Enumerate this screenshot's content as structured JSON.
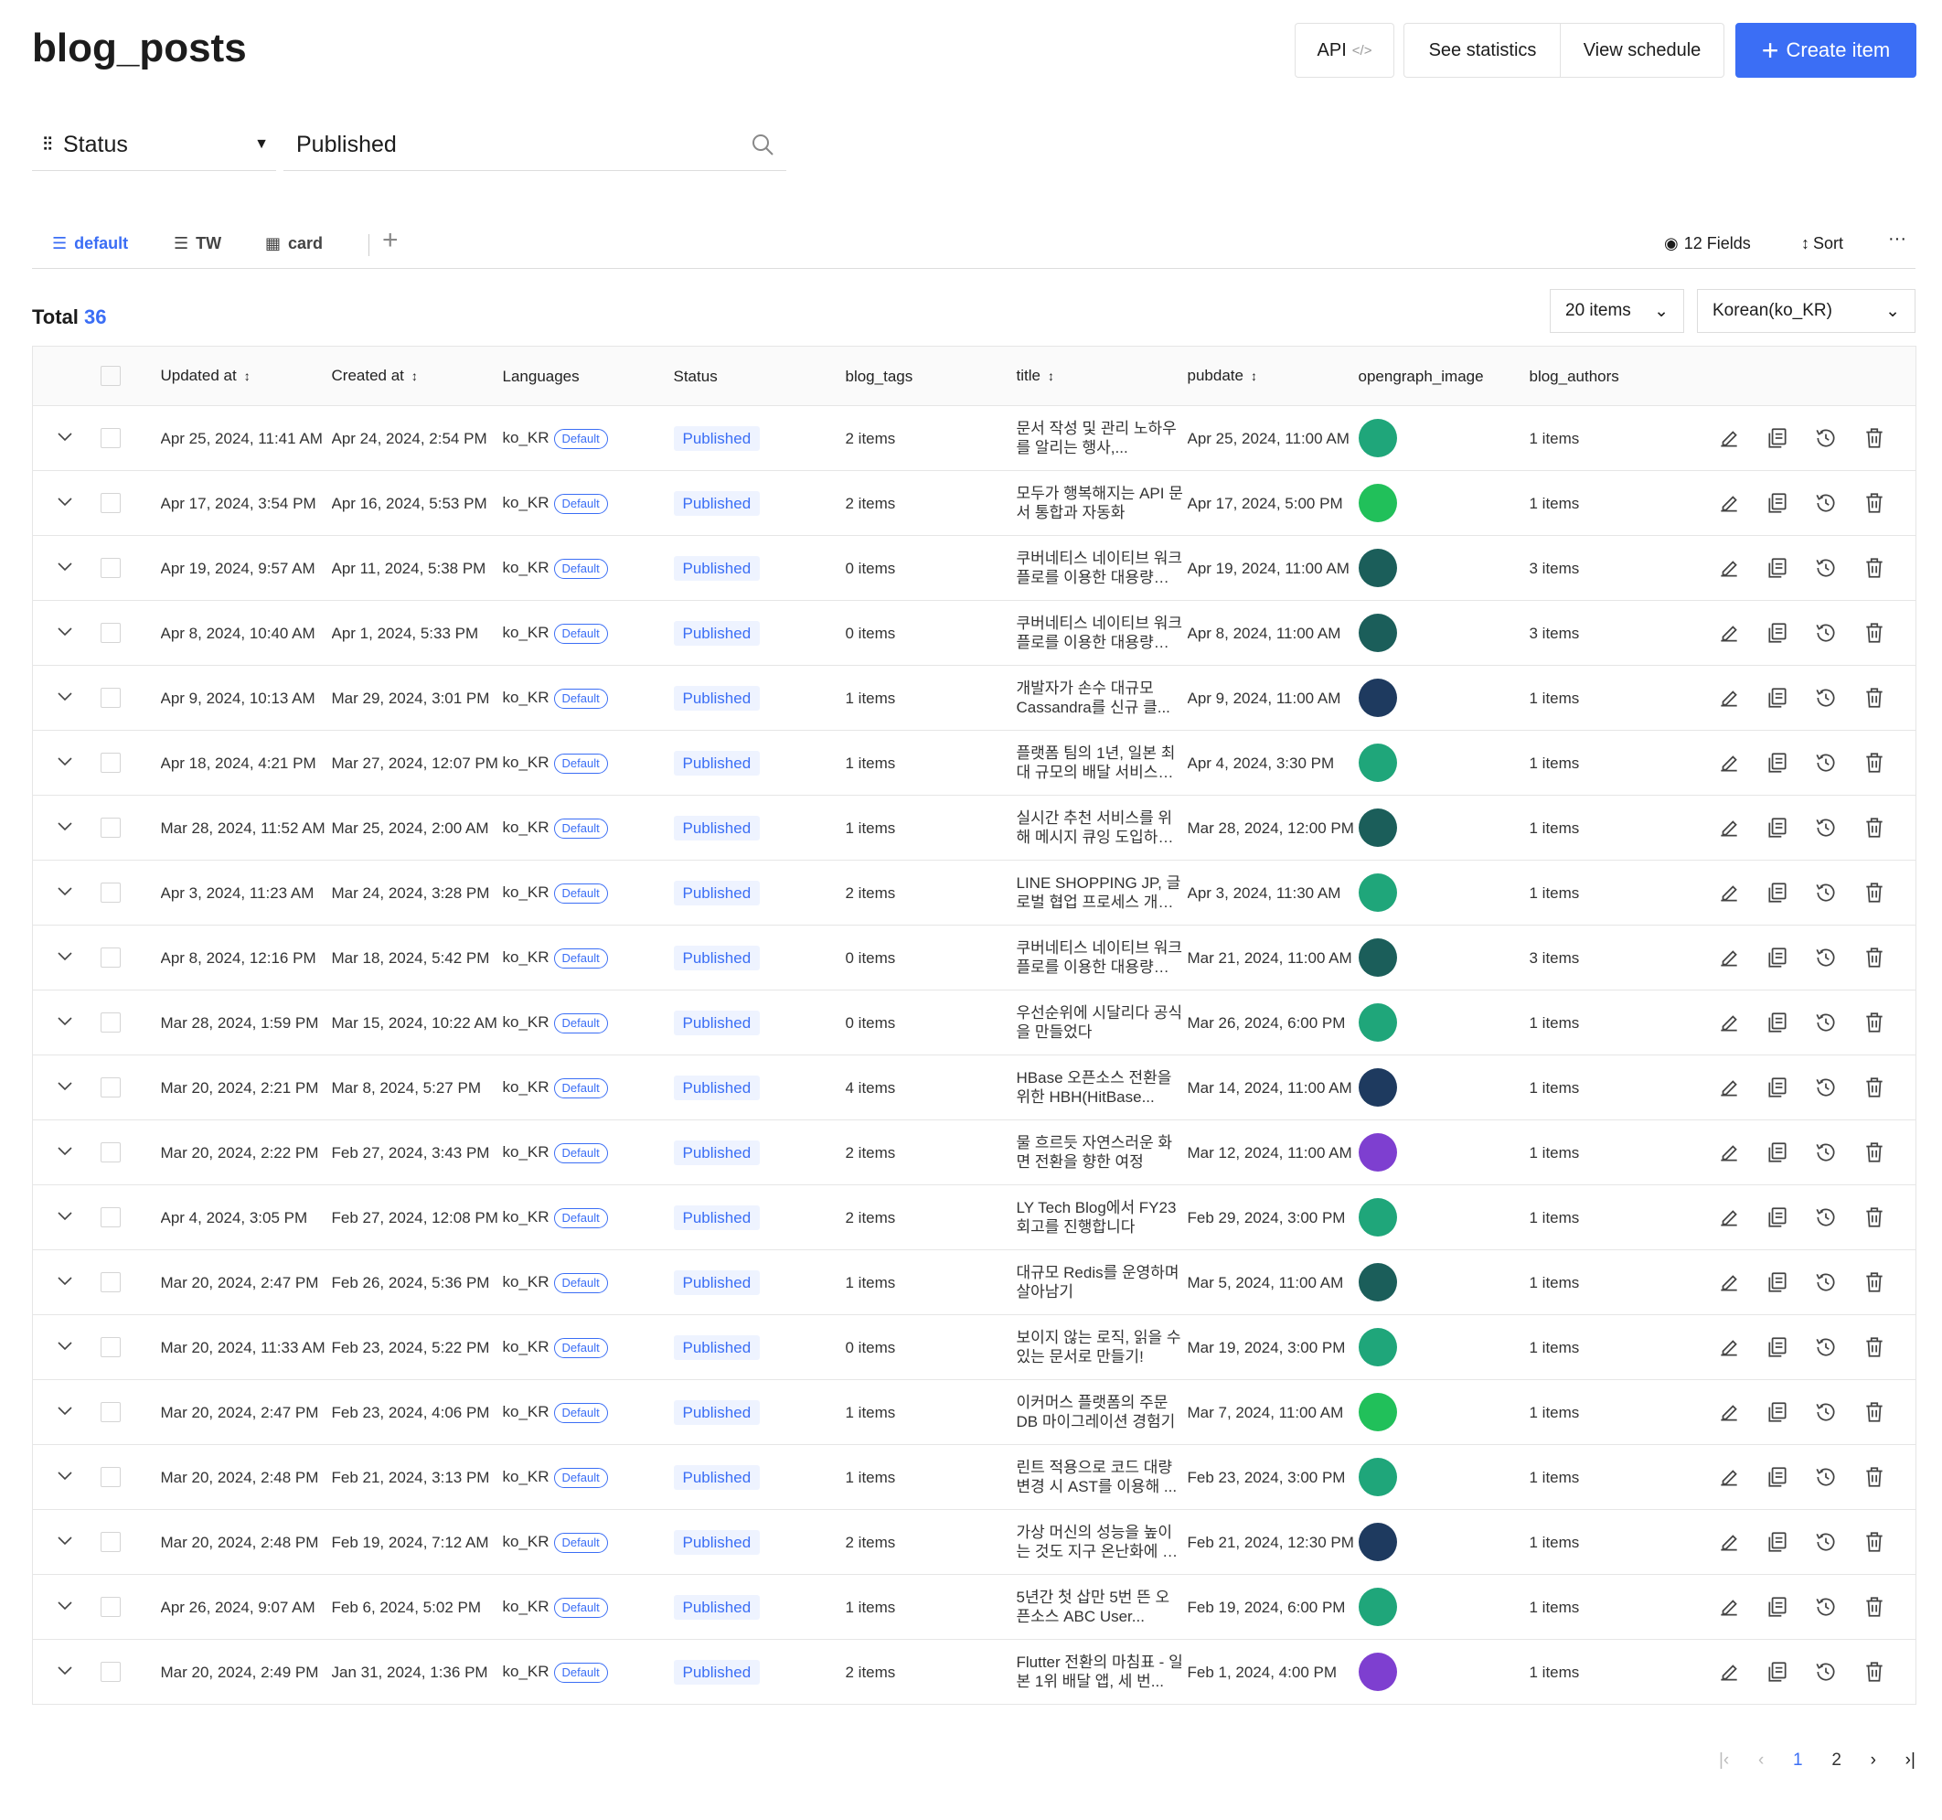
{
  "header": {
    "title": "blog_posts",
    "buttons": {
      "api": "API",
      "statistics": "See statistics",
      "schedule": "View schedule",
      "create": "Create item"
    }
  },
  "filter": {
    "field": "Status",
    "value": "Published"
  },
  "views": {
    "tabs": [
      "default",
      "TW",
      "card"
    ],
    "fields": "12 Fields",
    "sort": "Sort"
  },
  "summary": {
    "label": "Total",
    "count": 36,
    "page_size": "20 items",
    "locale": "Korean(ko_KR)"
  },
  "table": {
    "columns": [
      {
        "label": "Updated at",
        "sortable": true
      },
      {
        "label": "Created at",
        "sortable": true
      },
      {
        "label": "Languages",
        "sortable": false
      },
      {
        "label": "Status",
        "sortable": false
      },
      {
        "label": "blog_tags",
        "sortable": false
      },
      {
        "label": "title",
        "sortable": true
      },
      {
        "label": "pubdate",
        "sortable": true
      },
      {
        "label": "opengraph_image",
        "sortable": false
      },
      {
        "label": "blog_authors",
        "sortable": false
      }
    ],
    "rows": [
      {
        "updated_at": "Apr 25, 2024, 11:41 AM",
        "created_at": "Apr 24, 2024, 2:54 PM",
        "language": "ko_KR",
        "language_badge": "Default",
        "status": "Published",
        "blog_tags": "2 items",
        "title": "문서 작성 및 관리 노하우를 알리는 행사,...",
        "pubdate": "Apr 25, 2024, 11:00 AM",
        "opengraph_image": "#1fa67a",
        "blog_authors": "1 items"
      },
      {
        "updated_at": "Apr 17, 2024, 3:54 PM",
        "created_at": "Apr 16, 2024, 5:53 PM",
        "language": "ko_KR",
        "language_badge": "Default",
        "status": "Published",
        "blog_tags": "2 items",
        "title": "모두가 행복해지는 API 문서 통합과 자동화",
        "pubdate": "Apr 17, 2024, 5:00 PM",
        "opengraph_image": "#21c05a",
        "blog_authors": "1 items"
      },
      {
        "updated_at": "Apr 19, 2024, 9:57 AM",
        "created_at": "Apr 11, 2024, 5:38 PM",
        "language": "ko_KR",
        "language_badge": "Default",
        "status": "Published",
        "blog_tags": "0 items",
        "title": "쿠버네티스 네이티브 워크플로를 이용한 대용량 스...",
        "pubdate": "Apr 19, 2024, 11:00 AM",
        "opengraph_image": "#1b5e5a",
        "blog_authors": "3 items"
      },
      {
        "updated_at": "Apr 8, 2024, 10:40 AM",
        "created_at": "Apr 1, 2024, 5:33 PM",
        "language": "ko_KR",
        "language_badge": "Default",
        "status": "Published",
        "blog_tags": "0 items",
        "title": "쿠버네티스 네이티브 워크플로를 이용한 대용량 스...",
        "pubdate": "Apr 8, 2024, 11:00 AM",
        "opengraph_image": "#1b5e5a",
        "blog_authors": "3 items"
      },
      {
        "updated_at": "Apr 9, 2024, 10:13 AM",
        "created_at": "Mar 29, 2024, 3:01 PM",
        "language": "ko_KR",
        "language_badge": "Default",
        "status": "Published",
        "blog_tags": "1 items",
        "title": "개발자가 손수 대규모 Cassandra를 신규 클...",
        "pubdate": "Apr 9, 2024, 11:00 AM",
        "opengraph_image": "#1e3a5f",
        "blog_authors": "1 items"
      },
      {
        "updated_at": "Apr 18, 2024, 4:21 PM",
        "created_at": "Mar 27, 2024, 12:07 PM",
        "language": "ko_KR",
        "language_badge": "Default",
        "status": "Published",
        "blog_tags": "1 items",
        "title": "플랫폼 팀의 1년, 일본 최대 규모의 배달 서비스에 안...",
        "pubdate": "Apr 4, 2024, 3:30 PM",
        "opengraph_image": "#1fa67a",
        "blog_authors": "1 items"
      },
      {
        "updated_at": "Mar 28, 2024, 11:52 AM",
        "created_at": "Mar 25, 2024, 2:00 AM",
        "language": "ko_KR",
        "language_badge": "Default",
        "status": "Published",
        "blog_tags": "1 items",
        "title": "실시간 추천 서비스를 위해 메시지 큐잉 도입하기...",
        "pubdate": "Mar 28, 2024, 12:00 PM",
        "opengraph_image": "#1b5e5a",
        "blog_authors": "1 items"
      },
      {
        "updated_at": "Apr 3, 2024, 11:23 AM",
        "created_at": "Mar 24, 2024, 3:28 PM",
        "language": "ko_KR",
        "language_badge": "Default",
        "status": "Published",
        "blog_tags": "2 items",
        "title": "LINE SHOPPING JP, 글로벌 협업 프로세스 개선...",
        "pubdate": "Apr 3, 2024, 11:30 AM",
        "opengraph_image": "#1fa67a",
        "blog_authors": "1 items"
      },
      {
        "updated_at": "Apr 8, 2024, 12:16 PM",
        "created_at": "Mar 18, 2024, 5:42 PM",
        "language": "ko_KR",
        "language_badge": "Default",
        "status": "Published",
        "blog_tags": "0 items",
        "title": "쿠버네티스 네이티브 워크플로를 이용한 대용량 스...",
        "pubdate": "Mar 21, 2024, 11:00 AM",
        "opengraph_image": "#1b5e5a",
        "blog_authors": "3 items"
      },
      {
        "updated_at": "Mar 28, 2024, 1:59 PM",
        "created_at": "Mar 15, 2024, 10:22 AM",
        "language": "ko_KR",
        "language_badge": "Default",
        "status": "Published",
        "blog_tags": "0 items",
        "title": "우선순위에 시달리다 공식을 만들었다",
        "pubdate": "Mar 26, 2024, 6:00 PM",
        "opengraph_image": "#1fa67a",
        "blog_authors": "1 items"
      },
      {
        "updated_at": "Mar 20, 2024, 2:21 PM",
        "created_at": "Mar 8, 2024, 5:27 PM",
        "language": "ko_KR",
        "language_badge": "Default",
        "status": "Published",
        "blog_tags": "4 items",
        "title": "HBase 오픈소스 전환을 위한 HBH(HitBase...",
        "pubdate": "Mar 14, 2024, 11:00 AM",
        "opengraph_image": "#1e3a5f",
        "blog_authors": "1 items"
      },
      {
        "updated_at": "Mar 20, 2024, 2:22 PM",
        "created_at": "Feb 27, 2024, 3:43 PM",
        "language": "ko_KR",
        "language_badge": "Default",
        "status": "Published",
        "blog_tags": "2 items",
        "title": "물 흐르듯 자연스러운 화면 전환을 향한 여정",
        "pubdate": "Mar 12, 2024, 11:00 AM",
        "opengraph_image": "#7e3fd0",
        "blog_authors": "1 items"
      },
      {
        "updated_at": "Apr 4, 2024, 3:05 PM",
        "created_at": "Feb 27, 2024, 12:08 PM",
        "language": "ko_KR",
        "language_badge": "Default",
        "status": "Published",
        "blog_tags": "2 items",
        "title": "LY Tech Blog에서 FY23 회고를 진행합니다",
        "pubdate": "Feb 29, 2024, 3:00 PM",
        "opengraph_image": "#1fa67a",
        "blog_authors": "1 items"
      },
      {
        "updated_at": "Mar 20, 2024, 2:47 PM",
        "created_at": "Feb 26, 2024, 5:36 PM",
        "language": "ko_KR",
        "language_badge": "Default",
        "status": "Published",
        "blog_tags": "1 items",
        "title": "대규모 Redis를 운영하며 살아남기",
        "pubdate": "Mar 5, 2024, 11:00 AM",
        "opengraph_image": "#1b5e5a",
        "blog_authors": "1 items"
      },
      {
        "updated_at": "Mar 20, 2024, 11:33 AM",
        "created_at": "Feb 23, 2024, 5:22 PM",
        "language": "ko_KR",
        "language_badge": "Default",
        "status": "Published",
        "blog_tags": "0 items",
        "title": "보이지 않는 로직, 읽을 수 있는 문서로 만들기!",
        "pubdate": "Mar 19, 2024, 3:00 PM",
        "opengraph_image": "#1fa67a",
        "blog_authors": "1 items"
      },
      {
        "updated_at": "Mar 20, 2024, 2:47 PM",
        "created_at": "Feb 23, 2024, 4:06 PM",
        "language": "ko_KR",
        "language_badge": "Default",
        "status": "Published",
        "blog_tags": "1 items",
        "title": "이커머스 플랫폼의 주문 DB 마이그레이션 경험기",
        "pubdate": "Mar 7, 2024, 11:00 AM",
        "opengraph_image": "#21c05a",
        "blog_authors": "1 items"
      },
      {
        "updated_at": "Mar 20, 2024, 2:48 PM",
        "created_at": "Feb 21, 2024, 3:13 PM",
        "language": "ko_KR",
        "language_badge": "Default",
        "status": "Published",
        "blog_tags": "1 items",
        "title": "린트 적용으로 코드 대량 변경 시 AST를 이용해 ...",
        "pubdate": "Feb 23, 2024, 3:00 PM",
        "opengraph_image": "#1fa67a",
        "blog_authors": "1 items"
      },
      {
        "updated_at": "Mar 20, 2024, 2:48 PM",
        "created_at": "Feb 19, 2024, 7:12 AM",
        "language": "ko_KR",
        "language_badge": "Default",
        "status": "Published",
        "blog_tags": "2 items",
        "title": "가상 머신의 성능을 높이는 것도 지구 온난화에 도움...",
        "pubdate": "Feb 21, 2024, 12:30 PM",
        "opengraph_image": "#1e3a5f",
        "blog_authors": "1 items"
      },
      {
        "updated_at": "Apr 26, 2024, 9:07 AM",
        "created_at": "Feb 6, 2024, 5:02 PM",
        "language": "ko_KR",
        "language_badge": "Default",
        "status": "Published",
        "blog_tags": "1 items",
        "title": "5년간 첫 삽만 5번 뜬 오픈소스 ABC User...",
        "pubdate": "Feb 19, 2024, 6:00 PM",
        "opengraph_image": "#1fa67a",
        "blog_authors": "1 items"
      },
      {
        "updated_at": "Mar 20, 2024, 2:49 PM",
        "created_at": "Jan 31, 2024, 1:36 PM",
        "language": "ko_KR",
        "language_badge": "Default",
        "status": "Published",
        "blog_tags": "2 items",
        "title": "Flutter 전환의 마침표 - 일본 1위 배달 앱, 세 번...",
        "pubdate": "Feb 1, 2024, 4:00 PM",
        "opengraph_image": "#7e3fd0",
        "blog_authors": "1 items"
      }
    ]
  },
  "pagination": {
    "pages": [
      1,
      2
    ],
    "current": 1
  }
}
